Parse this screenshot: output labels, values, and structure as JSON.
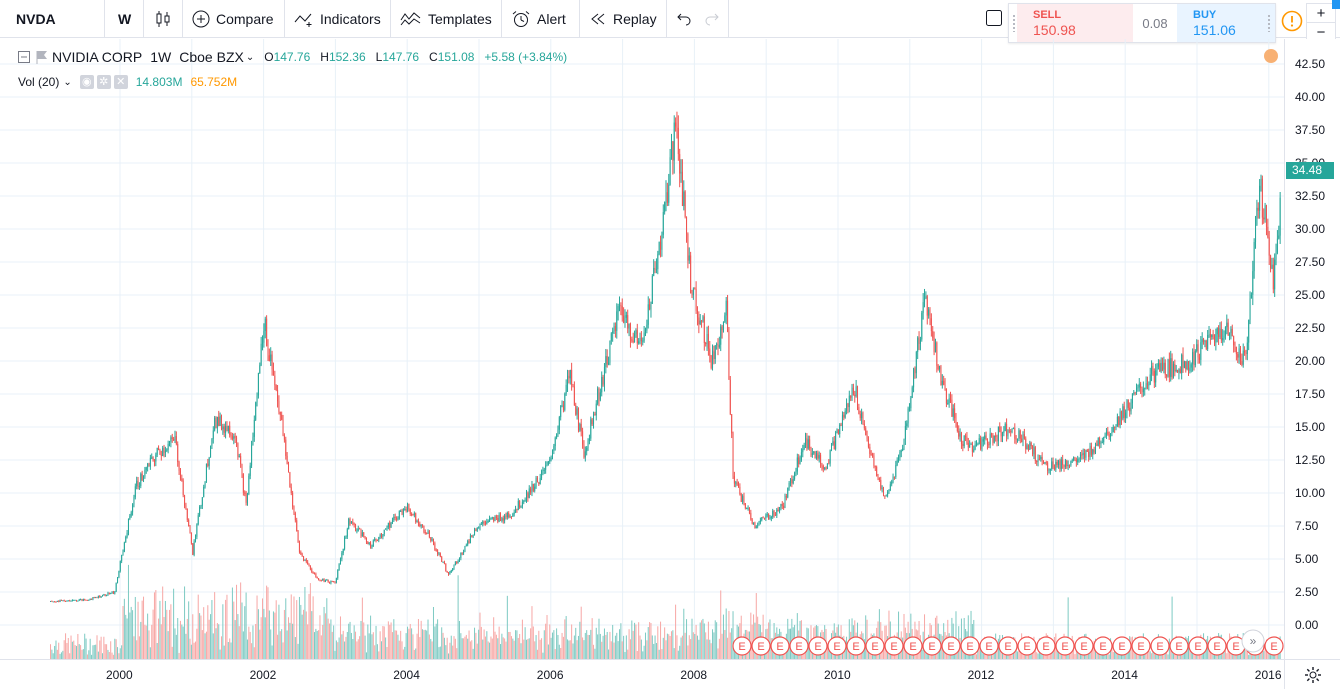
{
  "toolbar": {
    "symbol": "NVDA",
    "interval": "W",
    "compare_label": "Compare",
    "indicators_label": "Indicators",
    "templates_label": "Templates",
    "alert_label": "Alert",
    "replay_label": "Replay"
  },
  "trade": {
    "sell_label": "SELL",
    "sell_price": "150.98",
    "spread": "0.08",
    "buy_label": "BUY",
    "buy_price": "151.06",
    "zoom_in": "+",
    "zoom_out": "−"
  },
  "legend": {
    "title": "NVIDIA CORP",
    "interval": "1W",
    "exchange": "Cboe BZX",
    "o_key": "O",
    "o": "147.76",
    "h_key": "H",
    "h": "152.36",
    "l_key": "L",
    "l": "147.76",
    "c_key": "C",
    "c": "151.08",
    "change": "+5.58 (+3.84%)",
    "vol_label": "Vol (20)",
    "vol_value": "14.803M",
    "vol_ma": "65.752M"
  },
  "colors": {
    "up": "#26a69a",
    "down": "#ef5350",
    "vol_up": "#80cbc4",
    "vol_down": "#f7a9a7",
    "grid": "#e8f1f8",
    "earnings": "#ef5350"
  },
  "price_scale": {
    "ticks": [
      "42.50",
      "40.00",
      "37.50",
      "35.00",
      "32.50",
      "30.00",
      "27.50",
      "25.00",
      "22.50",
      "20.00",
      "17.50",
      "15.00",
      "12.50",
      "10.00",
      "7.50",
      "5.00",
      "2.50",
      "0.00"
    ],
    "last_price": "34.48"
  },
  "time_scale": {
    "ticks": [
      "2000",
      "2002",
      "2004",
      "2006",
      "2008",
      "2010",
      "2012",
      "2014",
      "2016"
    ]
  },
  "earnings_marker": "E",
  "chart_data": {
    "type": "candlestick",
    "title": "NVIDIA CORP",
    "interval": "1W",
    "ylim": [
      0,
      42.5
    ],
    "x_ticks": [
      "2000",
      "2002",
      "2004",
      "2006",
      "2008",
      "2010",
      "2012",
      "2014",
      "2016"
    ],
    "price_path": {
      "years": [
        1999.0,
        1999.5,
        1999.9,
        2000.2,
        2000.5,
        2000.75,
        2001.0,
        2001.3,
        2001.6,
        2001.75,
        2002.0,
        2002.2,
        2002.5,
        2002.75,
        2003.0,
        2003.2,
        2003.5,
        2004.0,
        2004.3,
        2004.6,
        2005.0,
        2005.5,
        2006.0,
        2006.3,
        2006.5,
        2007.0,
        2007.3,
        2007.6,
        2007.8,
        2008.0,
        2008.3,
        2008.5,
        2008.6,
        2008.9,
        2009.3,
        2009.6,
        2009.9,
        2010.3,
        2010.6,
        2010.75,
        2011.0,
        2011.3,
        2011.5,
        2011.8,
        2012.0,
        2012.5,
        2013.0,
        2013.5,
        2014.0,
        2014.5,
        2015.0,
        2015.5,
        2015.8,
        2016.0,
        2016.2,
        2016.3
      ],
      "close": [
        1.8,
        1.9,
        2.5,
        10.5,
        13.0,
        14.0,
        5.5,
        15.5,
        14.5,
        9.0,
        23.0,
        17.0,
        5.5,
        3.5,
        3.2,
        8.0,
        6.0,
        9.0,
        7.0,
        3.8,
        7.5,
        8.5,
        12.0,
        19.0,
        13.0,
        24.0,
        21.0,
        30.0,
        38.0,
        26.0,
        20.0,
        24.0,
        11.0,
        7.5,
        9.0,
        14.0,
        12.0,
        18.0,
        11.5,
        9.5,
        14.0,
        25.0,
        19.0,
        14.0,
        13.5,
        15.0,
        12.0,
        12.5,
        15.5,
        19.0,
        20.0,
        22.5,
        20.0,
        33.5,
        26.0,
        32.0
      ]
    },
    "volume_unit": "M"
  }
}
